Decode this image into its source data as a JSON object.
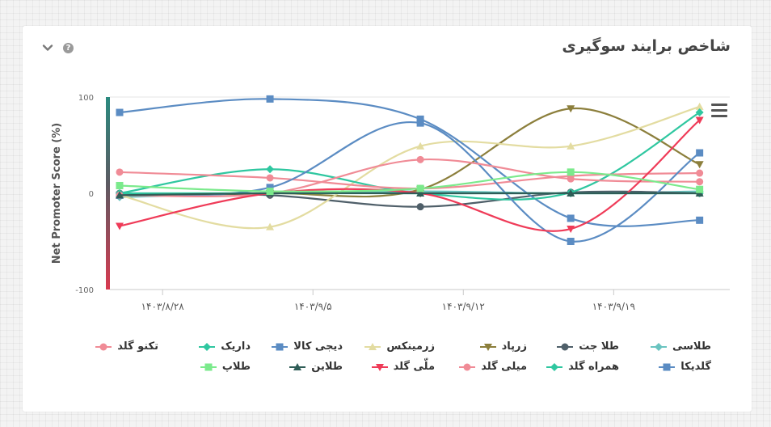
{
  "widget": {
    "title": "شاخص برایند سوگیری",
    "collapse_icon": "chevron-down-icon",
    "help_icon": "question-circle-icon",
    "help_label": "?",
    "menu_icon": "hamburger-menu-icon"
  },
  "chart_data": {
    "type": "line",
    "title": "شاخص برایند سوگیری",
    "ylabel": "Net Promoter Score (%)",
    "ylim": [
      -100,
      100
    ],
    "y_ticks": [
      100,
      0,
      -100
    ],
    "y_tick_labels": [
      "100",
      "0",
      "-100"
    ],
    "x_ticks": [
      "۱۴۰۳/۸/۲۸",
      "۱۴۰۳/۹/۵",
      "۱۴۰۳/۹/۱۲",
      "۱۴۰۳/۹/۱۹"
    ],
    "x": [
      "1403/08/26",
      "1403/09/03",
      "1403/09/10",
      "1403/09/17",
      "1403/09/23"
    ],
    "grid": false,
    "legend_position": "bottom",
    "series": [
      {
        "name": "طلاسی",
        "color": "#6ac4c0",
        "marker": "diamond",
        "values": [
          -4,
          0,
          2,
          0,
          2
        ]
      },
      {
        "name": "طلا جت",
        "color": "#4f5f69",
        "marker": "circle",
        "values": [
          0,
          -2,
          -14,
          1,
          0
        ]
      },
      {
        "name": "زرپاد",
        "color": "#8c7f3c",
        "marker": "triangle-down",
        "values": [
          -2,
          0,
          4,
          88,
          30
        ]
      },
      {
        "name": "زرمینکس",
        "color": "#e3dca1",
        "marker": "triangle-up",
        "values": [
          -2,
          -35,
          49,
          49,
          90
        ]
      },
      {
        "name": "دیجی کالا",
        "color": "#5b8cc3",
        "marker": "square",
        "values": [
          84,
          98,
          77,
          -26,
          -28
        ]
      },
      {
        "name": "داریک",
        "color": "#2fc7a0",
        "marker": "diamond",
        "values": [
          0,
          25,
          0,
          1,
          84
        ]
      },
      {
        "name": "تکنو گلد",
        "color": "#f08b96",
        "marker": "circle",
        "values": [
          22,
          16,
          5,
          18,
          21
        ]
      },
      {
        "name": "گلدیکا",
        "color": "#5b8cc3",
        "marker": "square",
        "values": [
          -2,
          6,
          73,
          -50,
          42
        ]
      },
      {
        "name": "همراه گلد",
        "color": "#2fc7a0",
        "marker": "diamond",
        "values": [
          0,
          0,
          0,
          0,
          0
        ]
      },
      {
        "name": "میلی گلد",
        "color": "#f08b96",
        "marker": "circle",
        "values": [
          -2,
          0,
          35,
          15,
          12
        ]
      },
      {
        "name": "ملّی گلد",
        "color": "#ef3b58",
        "marker": "triangle-down",
        "values": [
          -34,
          0,
          0,
          -37,
          76
        ]
      },
      {
        "name": "طلاین",
        "color": "#2f5d57",
        "marker": "triangle-up",
        "values": [
          -2,
          0,
          0,
          0,
          0
        ]
      },
      {
        "name": "طلاپ",
        "color": "#7bea8c",
        "marker": "square",
        "values": [
          8,
          2,
          5,
          22,
          4
        ]
      }
    ]
  }
}
